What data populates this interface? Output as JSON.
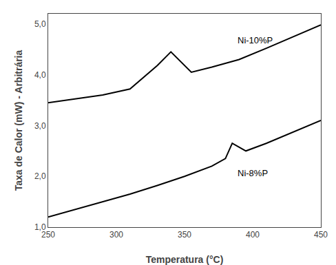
{
  "chart_data": {
    "type": "line",
    "xlabel": "Temperatura (°C)",
    "ylabel": "Taxa de Calor (mW) - Arbitrária",
    "color": "#000000",
    "series": [
      {
        "x": [
          250,
          270,
          290,
          310,
          320,
          330,
          340,
          355,
          370,
          390,
          410,
          430,
          450
        ],
        "values": [
          3.45,
          3.52,
          3.6,
          3.72,
          3.95,
          4.18,
          4.45,
          4.05,
          4.15,
          4.3,
          4.52,
          4.75,
          4.98
        ]
      },
      {
        "x": [
          250,
          270,
          290,
          310,
          330,
          350,
          370,
          380,
          385,
          395,
          410,
          430,
          450
        ],
        "values": [
          1.2,
          1.35,
          1.5,
          1.65,
          1.82,
          2.0,
          2.2,
          2.35,
          2.65,
          2.5,
          2.65,
          2.88,
          3.1
        ]
      }
    ],
    "annotations": [
      {
        "text": "Ni-10%P",
        "x": 388,
        "y": 4.55
      },
      {
        "text": "Ni-8%P",
        "x": 388,
        "y": 1.93
      }
    ],
    "xlim": [
      250,
      450
    ],
    "xticks": [
      250,
      300,
      350,
      400,
      450
    ],
    "ylim": [
      1.0,
      5.2
    ],
    "yticks": [
      {
        "value": 1.0,
        "label": "1,0"
      },
      {
        "value": 2.0,
        "label": "2,0"
      },
      {
        "value": 3.0,
        "label": "3,0"
      },
      {
        "value": 4.0,
        "label": "4,0"
      },
      {
        "value": 5.0,
        "label": "5,0"
      }
    ],
    "grid": false
  }
}
